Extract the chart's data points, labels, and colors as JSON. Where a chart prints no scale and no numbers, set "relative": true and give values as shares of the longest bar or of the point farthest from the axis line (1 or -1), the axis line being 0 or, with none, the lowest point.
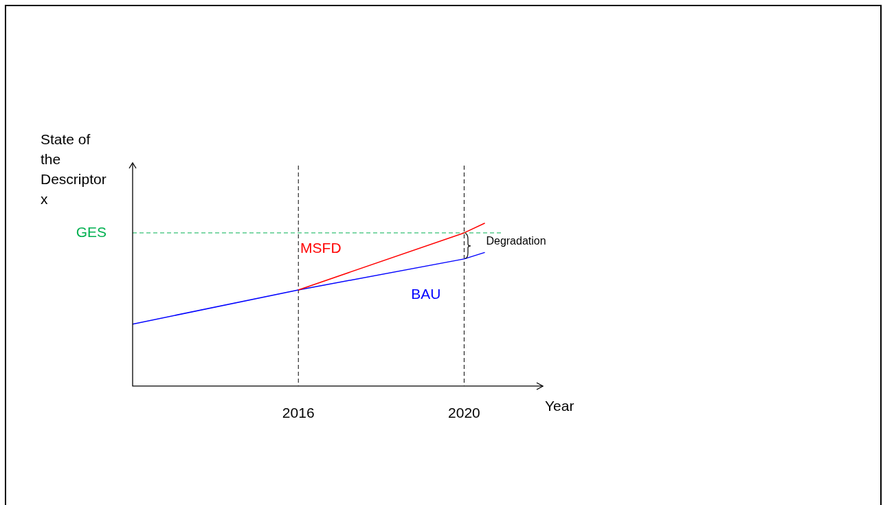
{
  "chart_data": {
    "type": "line",
    "relative": true,
    "xlabel": "Year",
    "ylabel": "State of the Descriptor x",
    "xlim": [
      2012,
      2021.9
    ],
    "xticks": [
      2016,
      2020
    ],
    "series": [
      {
        "name": "MSFD",
        "color": "#ff0000",
        "x": [
          2016,
          2020,
          2020.5
        ],
        "values": [
          0.59,
          0.94,
          1
        ]
      },
      {
        "name": "BAU",
        "color": "#0000ff",
        "x": [
          2012,
          2016,
          2020,
          2020.5
        ],
        "values": [
          0.38,
          0.59,
          0.78,
          0.82
        ]
      }
    ],
    "ref_lines": [
      {
        "axis": "y",
        "value": 0.94,
        "label": "GES",
        "color": "#00b050",
        "line_style": "dashed"
      },
      {
        "axis": "x",
        "value": 2016,
        "color": "#000000",
        "line_style": "dashed"
      },
      {
        "axis": "x",
        "value": 2020,
        "color": "#000000",
        "line_style": "dashed"
      }
    ],
    "annotations": [
      {
        "text": "Degradation",
        "x": 2020,
        "y": 0.86
      }
    ],
    "marker": "none",
    "grid": false,
    "legend": false
  }
}
